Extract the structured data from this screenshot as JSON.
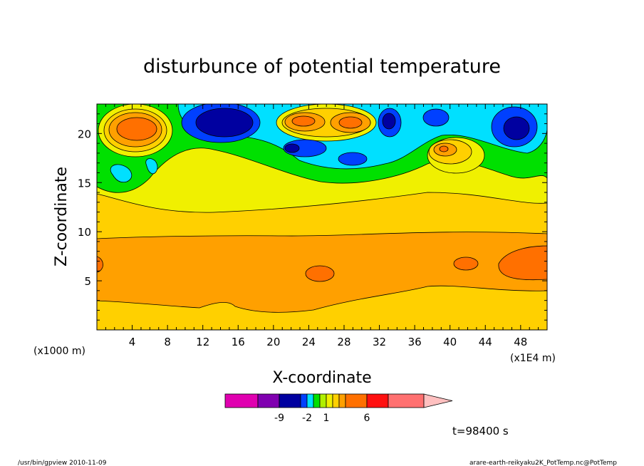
{
  "chart_data": {
    "type": "heatmap",
    "title": "disturbunce of potential temperature",
    "xlabel": "X-coordinate",
    "ylabel": "Z-coordinate",
    "x_scale_note": "(x1E4 m)",
    "y_scale_note": "(x1000 m)",
    "xlim": [
      0,
      51
    ],
    "ylim": [
      0,
      23
    ],
    "x_ticks": [
      "4",
      "8",
      "12",
      "16",
      "20",
      "24",
      "28",
      "32",
      "36",
      "40",
      "44",
      "48"
    ],
    "y_ticks": [
      "5",
      "10",
      "15",
      "20"
    ],
    "colorbar": {
      "labels": [
        "-9",
        "-2",
        "1",
        "6"
      ],
      "colors": [
        "#e000b0",
        "#8000b0",
        "#0000a0",
        "#0040ff",
        "#00e0ff",
        "#00e000",
        "#b0f000",
        "#f0f000",
        "#ffd000",
        "#ffa000",
        "#ff7000",
        "#ff1010",
        "#ff7070",
        "#ffc0c0"
      ]
    },
    "regions": [
      {
        "name": "upper-left warm anomaly",
        "level": "6",
        "x": 5,
        "z": 20.5
      },
      {
        "name": "cold core near x=14",
        "level": "-9",
        "x": 14.5,
        "z": 21
      },
      {
        "name": "warm pair near x=24-28",
        "level": "6",
        "x": 26,
        "z": 21
      },
      {
        "name": "cold core near x=33",
        "level": "-9",
        "x": 33,
        "z": 21
      },
      {
        "name": "cold core near x=48",
        "level": "-9",
        "x": 48,
        "z": 20.5
      },
      {
        "name": "warm spot near x=25",
        "level": "6",
        "x": 25.5,
        "z": 5.5
      },
      {
        "name": "warm spot near x=41",
        "level": "6",
        "x": 41.5,
        "z": 6.5
      },
      {
        "name": "warm blob near x=49",
        "level": "6",
        "x": 49,
        "z": 6.5
      }
    ]
  },
  "annotations": {
    "time": "t=98400 s",
    "footer_left": "/usr/bin/gpview   2010-11-09",
    "footer_right": "arare-earth-reikyaku2K_PotTemp.nc@PotTemp"
  }
}
